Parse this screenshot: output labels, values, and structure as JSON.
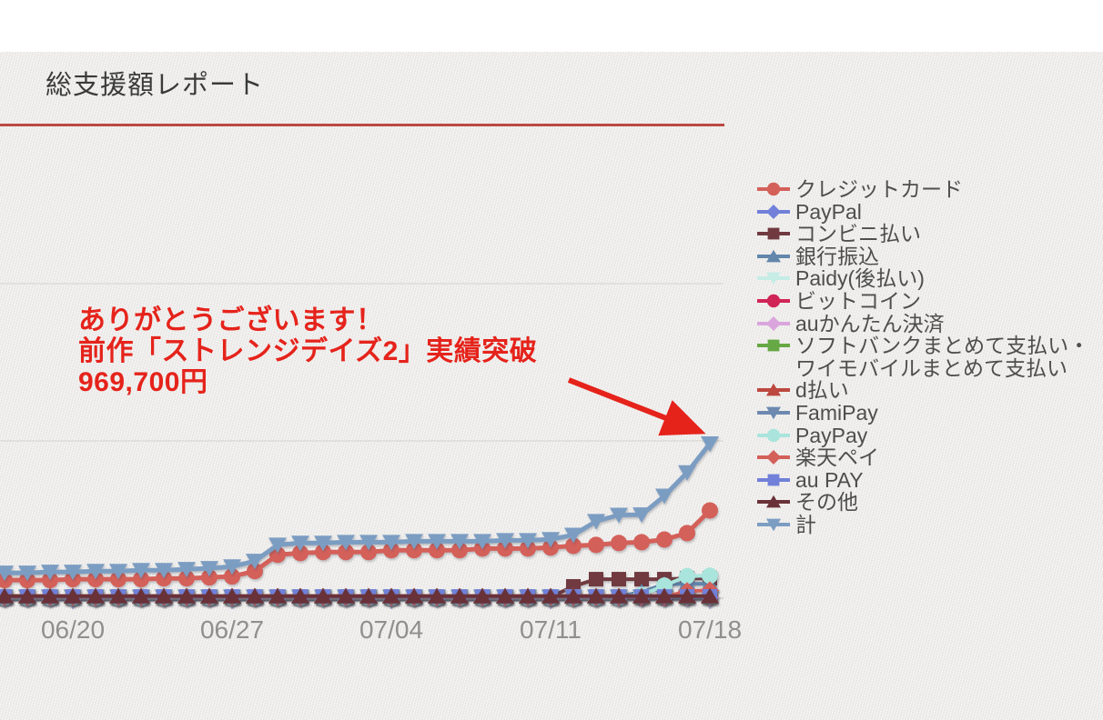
{
  "header": {
    "title": "総支援額レポート",
    "underline_color": "#bc4843"
  },
  "annotation": {
    "text": "ありがとうございます！\n前作「ストレンジデイズ2」実績突破\n969,700円",
    "color": "#e5231b"
  },
  "chart_data": {
    "type": "line",
    "title": "総支援額レポート",
    "xlabel": "",
    "ylabel": "",
    "x": [
      "06/17",
      "06/18",
      "06/19",
      "06/20",
      "06/21",
      "06/22",
      "06/23",
      "06/24",
      "06/25",
      "06/26",
      "06/27",
      "06/28",
      "06/29",
      "06/30",
      "07/01",
      "07/02",
      "07/03",
      "07/04",
      "07/05",
      "07/06",
      "07/07",
      "07/08",
      "07/09",
      "07/10",
      "07/11",
      "07/12",
      "07/13",
      "07/14",
      "07/15",
      "07/16",
      "07/17",
      "07/18"
    ],
    "x_tick_labels": [
      "06/20",
      "06/27",
      "07/04",
      "07/11",
      "07/18"
    ],
    "x_tick_indices": [
      3,
      10,
      17,
      24,
      31
    ],
    "ylim": [
      0,
      3100000
    ],
    "y_gridline_values": [
      1000000,
      2000000
    ],
    "grid": "horizontal",
    "legend_position": "right",
    "grid_color": "#d9d8d4",
    "baseline_color": "#c9c8c4",
    "tick_color": "#aeb6e0",
    "axis_label_color": "#8f8f8f",
    "series": [
      {
        "name": "クレジットカード",
        "color": "#d4605a",
        "marker": "circle",
        "values": [
          115000,
          115000,
          115000,
          121000,
          121000,
          121000,
          121000,
          126000,
          126000,
          132000,
          138000,
          172000,
          276000,
          287000,
          293000,
          293000,
          293000,
          305000,
          305000,
          305000,
          305000,
          316000,
          316000,
          316000,
          322000,
          333000,
          339000,
          351000,
          356000,
          373000,
          414000,
          558000
        ]
      },
      {
        "name": "PayPal",
        "color": "#7180d8",
        "marker": "diamond",
        "values": [
          6000,
          6000,
          6000,
          6000,
          6000,
          6000,
          6000,
          6000,
          6000,
          6000,
          6000,
          6000,
          6000,
          6000,
          6000,
          6000,
          6000,
          6000,
          6000,
          6000,
          6000,
          6000,
          6000,
          6000,
          6000,
          6000,
          6000,
          6000,
          6000,
          6000,
          6000,
          6000
        ]
      },
      {
        "name": "コンビニ払い",
        "color": "#703a40",
        "marker": "square",
        "values": [
          8000,
          8000,
          8000,
          8000,
          8000,
          8000,
          8000,
          8000,
          8000,
          8000,
          8000,
          8000,
          8000,
          8000,
          8000,
          8000,
          8000,
          8000,
          8000,
          8000,
          8000,
          8000,
          8000,
          8000,
          8000,
          75000,
          121000,
          121000,
          121000,
          121000,
          126000,
          126000
        ]
      },
      {
        "name": "銀行振込",
        "color": "#6286ac",
        "marker": "triangle-up",
        "values": [
          12000,
          12000,
          12000,
          12000,
          12000,
          12000,
          12000,
          12000,
          12000,
          12000,
          12000,
          12000,
          12000,
          12000,
          12000,
          12000,
          12000,
          12000,
          12000,
          12000,
          12000,
          12000,
          12000,
          12000,
          12000,
          12000,
          12000,
          12000,
          40000,
          88000,
          92000,
          92000
        ]
      },
      {
        "name": "Paidy(後払い)",
        "color": "#c6ece6",
        "marker": "triangle-down",
        "values": [
          10000,
          10000,
          10000,
          10000,
          10000,
          10000,
          10000,
          10000,
          10000,
          10000,
          10000,
          10000,
          10000,
          10000,
          10000,
          10000,
          10000,
          10000,
          10000,
          10000,
          10000,
          10000,
          10000,
          10000,
          10000,
          10000,
          10000,
          10000,
          10000,
          10000,
          10000,
          10000
        ]
      },
      {
        "name": "ビットコイン",
        "color": "#d12456",
        "marker": "circle",
        "values": [
          5000,
          5000,
          5000,
          5000,
          5000,
          5000,
          5000,
          5000,
          5000,
          5000,
          5000,
          5000,
          5000,
          5000,
          5000,
          5000,
          5000,
          5000,
          5000,
          5000,
          5000,
          5000,
          5000,
          5000,
          5000,
          5000,
          5000,
          5000,
          5000,
          5000,
          5000,
          5000
        ]
      },
      {
        "name": "auかんたん決済",
        "color": "#daa5dd",
        "marker": "diamond",
        "values": [
          4000,
          4000,
          4000,
          4000,
          4000,
          4000,
          4000,
          4000,
          4000,
          4000,
          4000,
          4000,
          4000,
          4000,
          4000,
          4000,
          4000,
          4000,
          4000,
          4000,
          4000,
          4000,
          4000,
          4000,
          4000,
          4000,
          4000,
          4000,
          4000,
          4000,
          4000,
          4000
        ]
      },
      {
        "name": "ソフトバンクまとめて支払い・ワイモバイルまとめて支払い",
        "color": "#66a844",
        "marker": "square",
        "values": [
          6000,
          6000,
          6000,
          6000,
          6000,
          6000,
          6000,
          6000,
          6000,
          6000,
          6000,
          6000,
          6000,
          6000,
          6000,
          6000,
          6000,
          6000,
          6000,
          6000,
          6000,
          6000,
          6000,
          6000,
          6000,
          6000,
          6000,
          6000,
          6000,
          6000,
          6000,
          6000
        ]
      },
      {
        "name": "d払い",
        "color": "#bc4840",
        "marker": "triangle-up",
        "values": [
          14000,
          14000,
          14000,
          14000,
          14000,
          14000,
          14000,
          14000,
          14000,
          14000,
          14000,
          14000,
          14000,
          14000,
          14000,
          14000,
          14000,
          14000,
          14000,
          14000,
          14000,
          14000,
          14000,
          14000,
          14000,
          14000,
          14000,
          14000,
          14000,
          14000,
          14000,
          14000
        ]
      },
      {
        "name": "FamiPay",
        "color": "#6d89b0",
        "marker": "triangle-down",
        "values": [
          9000,
          9000,
          9000,
          9000,
          9000,
          9000,
          9000,
          9000,
          9000,
          9000,
          9000,
          9000,
          9000,
          9000,
          9000,
          9000,
          9000,
          9000,
          9000,
          9000,
          9000,
          9000,
          9000,
          9000,
          9000,
          9000,
          9000,
          9000,
          9000,
          9000,
          9000,
          9000
        ]
      },
      {
        "name": "PayPay",
        "color": "#a9e5dc",
        "marker": "circle",
        "values": [
          3000,
          3000,
          3000,
          3000,
          3000,
          3000,
          3000,
          3000,
          3000,
          3000,
          3000,
          3000,
          3000,
          3000,
          3000,
          3000,
          3000,
          3000,
          3000,
          3000,
          3000,
          3000,
          3000,
          3000,
          3000,
          3000,
          3000,
          3000,
          20000,
          80000,
          140000,
          143000
        ]
      },
      {
        "name": "楽天ペイ",
        "color": "#d4605a",
        "marker": "diamond",
        "values": [
          7000,
          7000,
          7000,
          7000,
          7000,
          7000,
          7000,
          7000,
          7000,
          7000,
          7000,
          7000,
          7000,
          7000,
          7000,
          7000,
          7000,
          7000,
          7000,
          7000,
          7000,
          7000,
          7000,
          7000,
          7000,
          7000,
          7000,
          7000,
          7000,
          7000,
          45000,
          50000
        ]
      },
      {
        "name": "au PAY",
        "color": "#7180d8",
        "marker": "square",
        "values": [
          11000,
          11000,
          11000,
          11000,
          11000,
          11000,
          11000,
          11000,
          11000,
          11000,
          11000,
          11000,
          11000,
          11000,
          11000,
          11000,
          11000,
          11000,
          11000,
          11000,
          11000,
          11000,
          11000,
          11000,
          11000,
          11000,
          11000,
          11000,
          11000,
          11000,
          11000,
          11000
        ]
      },
      {
        "name": "その他",
        "color": "#693238",
        "marker": "triangle-up",
        "values": [
          13000,
          13000,
          13000,
          13000,
          13000,
          13000,
          13000,
          13000,
          13000,
          13000,
          13000,
          13000,
          13000,
          13000,
          13000,
          13000,
          13000,
          13000,
          13000,
          13000,
          13000,
          13000,
          13000,
          13000,
          13000,
          13000,
          13000,
          13000,
          13000,
          13000,
          13000,
          13000
        ]
      },
      {
        "name": "計",
        "color": "#7c9dc2",
        "marker": "triangle-down",
        "values": [
          161000,
          161000,
          167000,
          167000,
          172000,
          172000,
          178000,
          178000,
          184000,
          190000,
          201000,
          236000,
          339000,
          351000,
          351000,
          356000,
          356000,
          356000,
          362000,
          362000,
          362000,
          362000,
          368000,
          368000,
          374000,
          402000,
          489000,
          529000,
          531000,
          650000,
          799000,
          983000
        ]
      }
    ]
  }
}
